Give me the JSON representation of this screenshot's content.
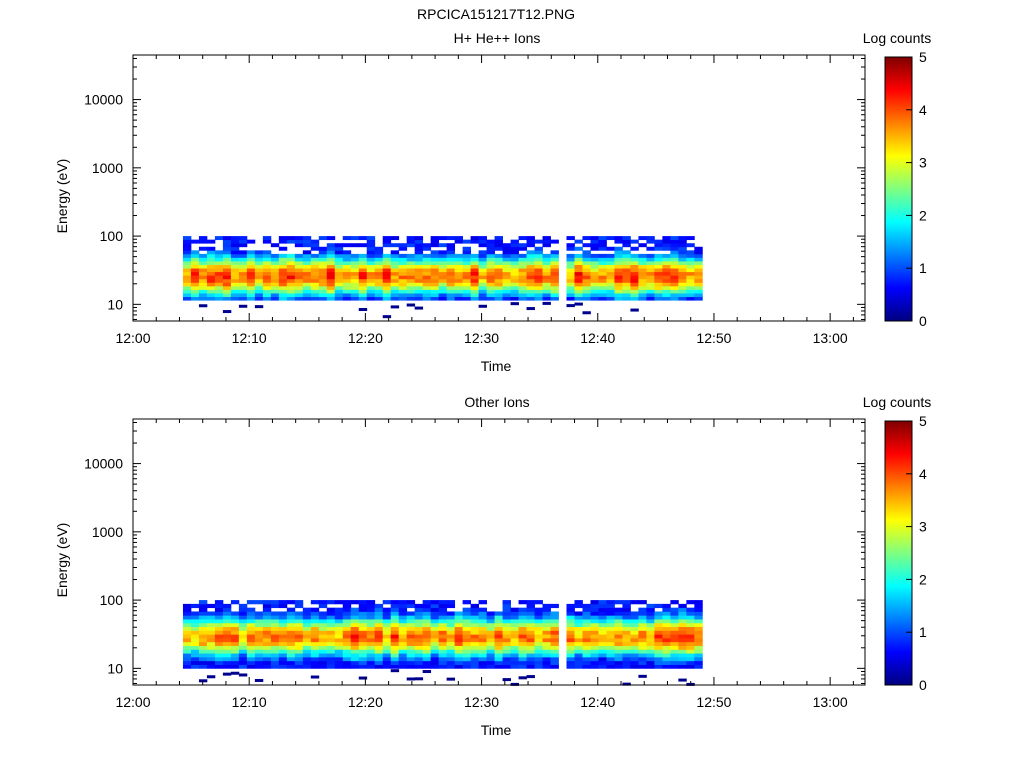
{
  "figure_title": "RPCICA151217T12.PNG",
  "chart_data": [
    {
      "type": "heatmap",
      "title": "H+ He++ Ions",
      "xlabel": "Time",
      "ylabel": "Energy (eV)",
      "yscale": "log",
      "xlim": [
        "12:00",
        "13:03"
      ],
      "ylim": [
        5.7,
        45000
      ],
      "xticks": [
        "12:00",
        "12:10",
        "12:20",
        "12:30",
        "12:40",
        "12:50",
        "13:00"
      ],
      "yticks": [
        "10",
        "100",
        "1000",
        "10000"
      ],
      "colorbar": {
        "label": "Log counts",
        "ticks": [
          "0",
          "1",
          "2",
          "3",
          "4",
          "5"
        ],
        "range": [
          0,
          5
        ],
        "colormap": "jet"
      },
      "data_coverage": {
        "start": "12:04.3",
        "end": "12:49",
        "energy_min": 11.5,
        "energy_max": 100
      },
      "peak_energy": 26,
      "peak_log_counts": 3.9,
      "profile_seed": 3
    },
    {
      "type": "heatmap",
      "title": "Other Ions",
      "xlabel": "Time",
      "ylabel": "Energy (eV)",
      "yscale": "log",
      "xlim": [
        "12:00",
        "13:03"
      ],
      "ylim": [
        5.7,
        45000
      ],
      "xticks": [
        "12:00",
        "12:10",
        "12:20",
        "12:30",
        "12:40",
        "12:50",
        "13:00"
      ],
      "yticks": [
        "10",
        "100",
        "1000",
        "10000"
      ],
      "colorbar": {
        "label": "Log counts",
        "ticks": [
          "0",
          "1",
          "2",
          "3",
          "4",
          "5"
        ],
        "range": [
          0,
          5
        ],
        "colormap": "jet"
      },
      "data_coverage": {
        "start": "12:04.3",
        "end": "12:49",
        "energy_min": 10,
        "energy_max": 100
      },
      "peak_energy": 29,
      "peak_log_counts": 3.8,
      "profile_seed": 11
    }
  ]
}
